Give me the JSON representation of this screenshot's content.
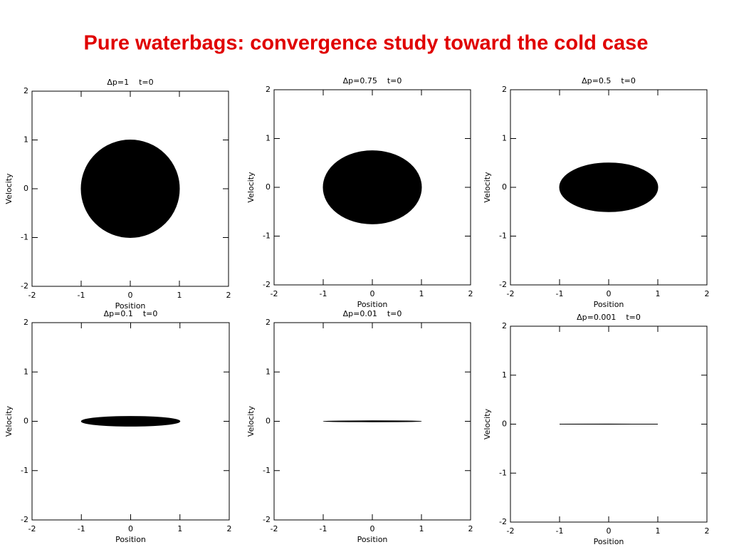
{
  "slide_title": "Pure waterbags: convergence study toward the cold case",
  "chart_data": [
    {
      "type": "ellipse",
      "title": "Δp=1    t=0",
      "x_label": "Position",
      "y_label": "Velocity",
      "xlim": [
        -2,
        2
      ],
      "ylim": [
        -2,
        2
      ],
      "xticks": [
        -2,
        -1,
        0,
        1,
        2
      ],
      "yticks": [
        -2,
        -1,
        0,
        1,
        2
      ],
      "color": "#000000",
      "ellipse": {
        "x": [
          -1,
          1
        ],
        "y": [
          -1,
          1
        ]
      }
    },
    {
      "type": "ellipse",
      "title": "Δp=0.75    t=0",
      "x_label": "Position",
      "y_label": "Velocity",
      "xlim": [
        -2,
        2
      ],
      "ylim": [
        -2,
        2
      ],
      "xticks": [
        -2,
        -1,
        0,
        1,
        2
      ],
      "yticks": [
        -2,
        -1,
        0,
        1,
        2
      ],
      "color": "#000000",
      "ellipse": {
        "x": [
          -1,
          1
        ],
        "y": [
          -0.75,
          0.75
        ]
      }
    },
    {
      "type": "ellipse",
      "title": "Δp=0.5    t=0",
      "x_label": "Position",
      "y_label": "Velocity",
      "xlim": [
        -2,
        2
      ],
      "ylim": [
        -2,
        2
      ],
      "xticks": [
        -2,
        -1,
        0,
        1,
        2
      ],
      "yticks": [
        -2,
        -1,
        0,
        1,
        2
      ],
      "color": "#000000",
      "ellipse": {
        "x": [
          -1,
          1
        ],
        "y": [
          -0.5,
          0.5
        ]
      }
    },
    {
      "type": "ellipse",
      "title": "Δp=0.1    t=0",
      "x_label": "Position",
      "y_label": "Velocity",
      "xlim": [
        -2,
        2
      ],
      "ylim": [
        -2,
        2
      ],
      "xticks": [
        -2,
        -1,
        0,
        1,
        2
      ],
      "yticks": [
        -2,
        -1,
        0,
        1,
        2
      ],
      "color": "#000000",
      "ellipse": {
        "x": [
          -1,
          1
        ],
        "y": [
          -0.1,
          0.1
        ]
      }
    },
    {
      "type": "ellipse",
      "title": "Δp=0.01    t=0",
      "x_label": "Position",
      "y_label": "Velocity",
      "xlim": [
        -2,
        2
      ],
      "ylim": [
        -2,
        2
      ],
      "xticks": [
        -2,
        -1,
        0,
        1,
        2
      ],
      "yticks": [
        -2,
        -1,
        0,
        1,
        2
      ],
      "color": "#000000",
      "ellipse": {
        "x": [
          -1,
          1
        ],
        "y": [
          -0.01,
          0.01
        ]
      }
    },
    {
      "type": "ellipse",
      "title": "Δp=0.001    t=0",
      "x_label": "Position",
      "y_label": "Velocity",
      "xlim": [
        -2,
        2
      ],
      "ylim": [
        -2,
        2
      ],
      "xticks": [
        -2,
        -1,
        0,
        1,
        2
      ],
      "yticks": [
        -2,
        -1,
        0,
        1,
        2
      ],
      "color": "#000000",
      "ellipse": {
        "x": [
          -1,
          1
        ],
        "y": [
          -0.001,
          0.001
        ]
      }
    }
  ]
}
